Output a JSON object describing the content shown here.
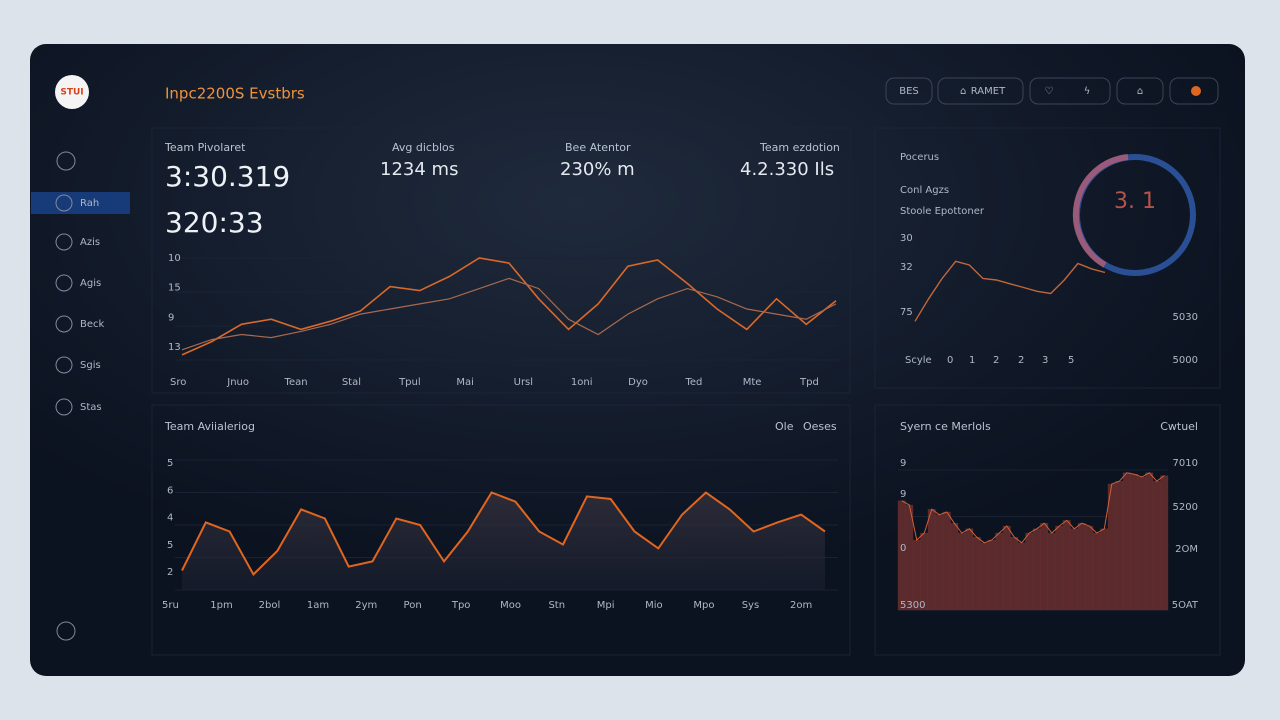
{
  "header": {
    "logo": "STUI",
    "title": "Inpc2200S Evstbrs",
    "buttons": [
      "BES",
      "RAMET"
    ]
  },
  "sidebar": {
    "items": [
      "Rah",
      "Azis",
      "Agis",
      "Beck",
      "Sgis",
      "Stas"
    ]
  },
  "stats": [
    {
      "label": "Team Pivolaret",
      "value": "3:30.319"
    },
    {
      "label": "Avg dicblos",
      "value": "1234 ms"
    },
    {
      "label": "Bee Atentor",
      "value": "230% m"
    },
    {
      "label": "Team ezdotion",
      "value": "4.2.330 Ils"
    }
  ],
  "stat_secondary": "320:33",
  "main_chart": {
    "type": "line",
    "y_labels": [
      "10",
      "15",
      "9",
      "13"
    ],
    "x_labels": [
      "Sro",
      "Jnuo",
      "Tean",
      "Stal",
      "Tpul",
      "Mai",
      "Ursl",
      "1oni",
      "Dyo",
      "Ted",
      "Mte",
      "Tpd"
    ],
    "ylim": [
      0,
      100
    ],
    "series": [
      {
        "color": "#d9682a",
        "values": [
          5,
          18,
          35,
          40,
          30,
          38,
          48,
          72,
          68,
          82,
          100,
          95,
          60,
          30,
          55,
          92,
          98,
          75,
          50,
          30,
          60,
          35,
          58
        ]
      },
      {
        "color": "#a86a4e",
        "values": [
          10,
          20,
          25,
          22,
          28,
          35,
          45,
          50,
          55,
          60,
          70,
          80,
          70,
          40,
          25,
          45,
          60,
          70,
          62,
          50,
          45,
          40,
          55
        ]
      }
    ]
  },
  "activity_chart": {
    "type": "area",
    "title": "Team Aviialeriog",
    "legend": [
      "Ole",
      "Oeses"
    ],
    "y_labels": [
      "5",
      "6",
      "4",
      "5",
      "2"
    ],
    "x_labels": [
      "5ru",
      "1pm",
      "2bol",
      "1am",
      "2ym",
      "Pon",
      "Tpo",
      "Moo",
      "Stn",
      "Mpi",
      "Mio",
      "Mpo",
      "Sys",
      "2om"
    ],
    "ylim": [
      0,
      100
    ],
    "color": "#e0661f",
    "values": [
      15,
      52,
      45,
      12,
      30,
      62,
      55,
      18,
      22,
      55,
      50,
      22,
      45,
      75,
      68,
      45,
      35,
      72,
      70,
      45,
      32,
      58,
      75,
      62,
      45,
      52,
      58,
      45
    ]
  },
  "side_panel": {
    "title": "Pocerus",
    "lines": [
      "Conl Agzs",
      "Stoole Epottoner"
    ],
    "gauge_label": "3. 1",
    "chart": {
      "type": "line",
      "y_labels": [
        "30",
        "32",
        "75"
      ],
      "x_labels": [
        "Scyle",
        "0",
        "1",
        "2",
        "2",
        "3",
        "5"
      ],
      "right_labels": [
        "5030",
        "5000"
      ],
      "ylim": [
        0,
        100
      ],
      "color": "#c0663a",
      "values": [
        5,
        35,
        62,
        85,
        80,
        62,
        60,
        55,
        50,
        45,
        42,
        60,
        82,
        75,
        70
      ]
    }
  },
  "system_chart": {
    "type": "bar",
    "title": "Syern ce Merlols",
    "corner": "Cwtuel",
    "left_labels": [
      "9",
      "9",
      "0",
      "5300"
    ],
    "right_labels": [
      "7010",
      "5200",
      "2OM",
      "5OAT"
    ],
    "ylim": [
      0,
      100
    ],
    "color": "#5a2a2c",
    "values": [
      78,
      75,
      50,
      55,
      72,
      68,
      70,
      62,
      55,
      58,
      52,
      48,
      50,
      55,
      60,
      52,
      48,
      55,
      58,
      62,
      55,
      60,
      64,
      58,
      62,
      60,
      55,
      58,
      90,
      92,
      98,
      97,
      95,
      98,
      92,
      96
    ]
  }
}
